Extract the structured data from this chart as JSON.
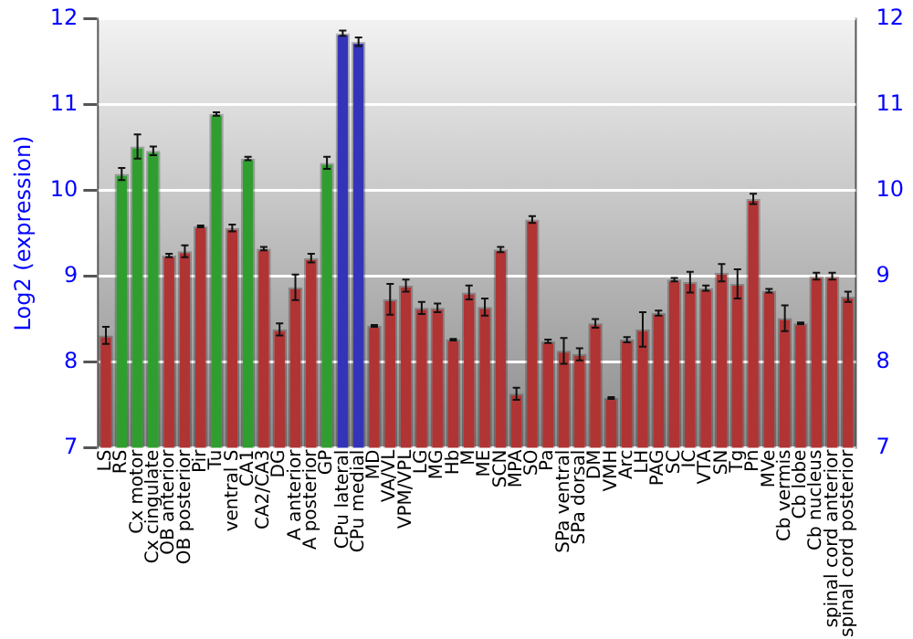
{
  "chart_data": {
    "type": "bar",
    "ylabel": "Log2 (expression)",
    "categories": [
      "LS",
      "RS",
      "Cx motor",
      "Cx cingulate",
      "OB anterior",
      "OB posterior",
      "Pir",
      "Tu",
      "ventral S",
      "CA1",
      "CA2/CA3",
      "DG",
      "A anterior",
      "A posterior",
      "GP",
      "CPu lateral",
      "CPu medial",
      "MD",
      "VA/VL",
      "VPM/VPL",
      "LG",
      "MG",
      "Hb",
      "M",
      "ME",
      "SCN",
      "MPA",
      "SO",
      "Pa",
      "SPa ventral",
      "SPa dorsal",
      "DM",
      "VMH",
      "Arc",
      "LH",
      "PAG",
      "SC",
      "IC",
      "VTA",
      "SN",
      "Tg",
      "Pn",
      "MVe",
      "Cb vermis",
      "Cb lobe",
      "Cb nucleus",
      "spinal cord anterior",
      "spinal cord posterior"
    ],
    "values": [
      8.31,
      10.19,
      10.51,
      10.46,
      9.24,
      9.29,
      9.58,
      10.89,
      9.56,
      10.37,
      9.32,
      8.38,
      8.87,
      9.21,
      10.32,
      11.83,
      11.73,
      8.42,
      8.73,
      8.89,
      8.63,
      8.63,
      8.26,
      8.81,
      8.64,
      9.31,
      7.63,
      9.66,
      8.24,
      8.13,
      8.09,
      8.45,
      7.58,
      8.26,
      8.38,
      8.57,
      8.96,
      8.93,
      8.86,
      9.04,
      8.91,
      9.9,
      8.83,
      8.51,
      8.45,
      9.0,
      9.0,
      8.76
    ],
    "errors": [
      0.1,
      0.07,
      0.14,
      0.05,
      0.02,
      0.07,
      0.01,
      0.02,
      0.04,
      0.02,
      0.02,
      0.07,
      0.15,
      0.05,
      0.07,
      0.03,
      0.05,
      0.01,
      0.18,
      0.07,
      0.07,
      0.05,
      0.01,
      0.08,
      0.1,
      0.03,
      0.07,
      0.04,
      0.02,
      0.15,
      0.07,
      0.05,
      0.01,
      0.03,
      0.2,
      0.03,
      0.02,
      0.12,
      0.03,
      0.1,
      0.17,
      0.06,
      0.02,
      0.15,
      0.01,
      0.04,
      0.04,
      0.06
    ],
    "colors": [
      "#b03434",
      "#2f9e2f",
      "#2f9e2f",
      "#2f9e2f",
      "#b03434",
      "#b03434",
      "#b03434",
      "#2f9e2f",
      "#b03434",
      "#2f9e2f",
      "#b03434",
      "#b03434",
      "#b03434",
      "#b03434",
      "#2f9e2f",
      "#3434b8",
      "#3434b8",
      "#b03434",
      "#b03434",
      "#b03434",
      "#b03434",
      "#b03434",
      "#b03434",
      "#b03434",
      "#b03434",
      "#b03434",
      "#b03434",
      "#b03434",
      "#b03434",
      "#b03434",
      "#b03434",
      "#b03434",
      "#b03434",
      "#b03434",
      "#b03434",
      "#b03434",
      "#b03434",
      "#b03434",
      "#b03434",
      "#b03434",
      "#b03434",
      "#b03434",
      "#b03434",
      "#b03434",
      "#b03434",
      "#b03434",
      "#b03434",
      "#b03434"
    ],
    "ylim": [
      7,
      12
    ],
    "yticks": [
      7,
      8,
      9,
      10,
      11,
      12
    ],
    "y2lim": [
      7,
      12
    ],
    "y2ticks": [
      7,
      8,
      9,
      10,
      11,
      12
    ],
    "grid": "y",
    "legend": false
  }
}
